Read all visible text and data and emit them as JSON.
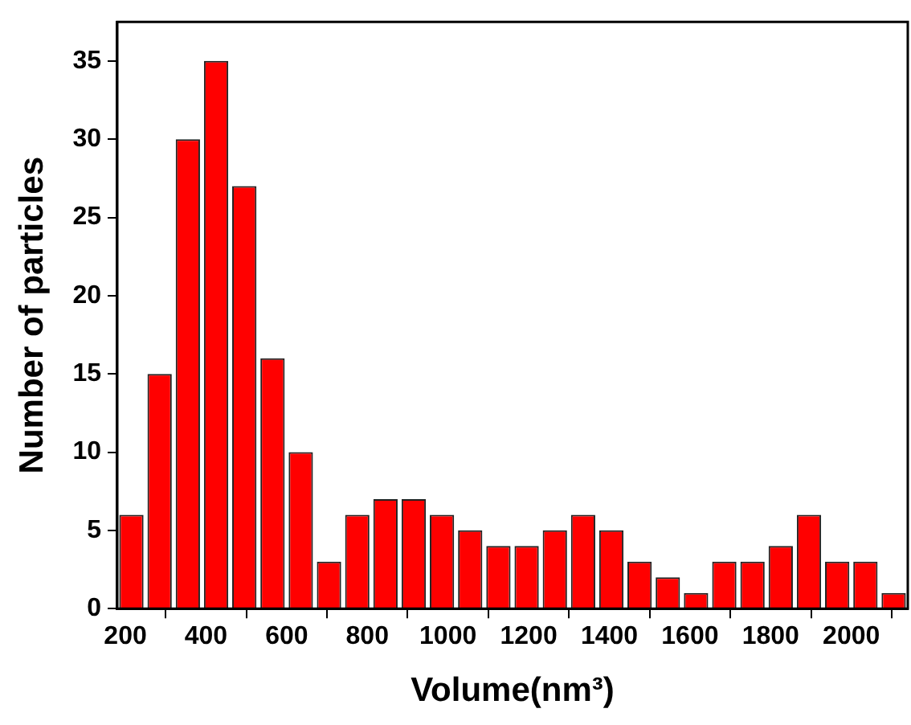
{
  "chart_data": {
    "type": "histogram",
    "xlabel": "Volume(nm³)",
    "ylabel": "Number of particles",
    "bins": [
      180,
      250,
      320,
      390,
      460,
      530,
      600,
      670,
      740,
      810,
      880,
      950,
      1020,
      1090,
      1160,
      1230,
      1300,
      1370,
      1440,
      1510,
      1580,
      1650,
      1720,
      1790,
      1860,
      1930,
      2000,
      2070,
      2140
    ],
    "values": [
      6,
      15,
      30,
      35,
      27,
      16,
      10,
      3,
      6,
      7,
      7,
      6,
      5,
      4,
      4,
      5,
      6,
      5,
      3,
      2,
      1,
      3,
      3,
      4,
      6,
      3,
      3,
      1
    ],
    "color": "#ff0000",
    "xlim": [
      180,
      2140
    ],
    "xticks": [
      200,
      400,
      600,
      800,
      1000,
      1200,
      1400,
      1600,
      1800,
      2000
    ],
    "ylim": [
      0,
      37.5
    ],
    "yticks": [
      0,
      5,
      10,
      15,
      20,
      25,
      30,
      35
    ],
    "grid": false
  }
}
